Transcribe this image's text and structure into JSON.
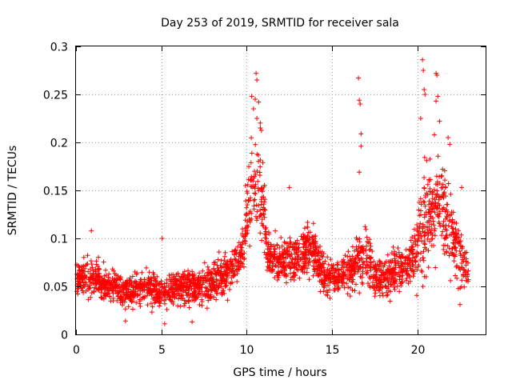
{
  "chart_data": {
    "type": "scatter",
    "title": "Day 253 of 2019, SRMTID for receiver sala",
    "xlabel": "GPS time / hours",
    "ylabel": "SRMTID / TECUs",
    "xlim": [
      0,
      24
    ],
    "ylim": [
      0,
      0.3
    ],
    "xticks": [
      0,
      5,
      10,
      15,
      20
    ],
    "xtick_labels": [
      "0",
      "5",
      "10",
      "15",
      "20"
    ],
    "yticks": [
      0,
      0.05,
      0.1,
      0.15,
      0.2,
      0.25,
      0.3
    ],
    "ytick_labels": [
      "0",
      "0.05",
      "0.1",
      "0.15",
      "0.2",
      "0.25",
      "0.3"
    ],
    "grid": true,
    "marker": "+",
    "color": "#ff0000",
    "data_extent": [
      0,
      23
    ],
    "envelope": [
      {
        "x": 0.0,
        "mean": 0.06,
        "spread": 0.018
      },
      {
        "x": 1.0,
        "mean": 0.058,
        "spread": 0.018
      },
      {
        "x": 2.0,
        "mean": 0.05,
        "spread": 0.016
      },
      {
        "x": 3.0,
        "mean": 0.045,
        "spread": 0.014
      },
      {
        "x": 4.0,
        "mean": 0.048,
        "spread": 0.016
      },
      {
        "x": 5.0,
        "mean": 0.045,
        "spread": 0.016
      },
      {
        "x": 6.0,
        "mean": 0.05,
        "spread": 0.018
      },
      {
        "x": 7.0,
        "mean": 0.048,
        "spread": 0.016
      },
      {
        "x": 8.0,
        "mean": 0.055,
        "spread": 0.018
      },
      {
        "x": 9.0,
        "mean": 0.065,
        "spread": 0.02
      },
      {
        "x": 9.7,
        "mean": 0.085,
        "spread": 0.018
      },
      {
        "x": 10.3,
        "mean": 0.15,
        "spread": 0.06
      },
      {
        "x": 10.8,
        "mean": 0.16,
        "spread": 0.06
      },
      {
        "x": 11.2,
        "mean": 0.085,
        "spread": 0.025
      },
      {
        "x": 12.0,
        "mean": 0.075,
        "spread": 0.02
      },
      {
        "x": 13.0,
        "mean": 0.08,
        "spread": 0.02
      },
      {
        "x": 13.8,
        "mean": 0.09,
        "spread": 0.025
      },
      {
        "x": 14.5,
        "mean": 0.06,
        "spread": 0.018
      },
      {
        "x": 15.5,
        "mean": 0.06,
        "spread": 0.016
      },
      {
        "x": 16.5,
        "mean": 0.075,
        "spread": 0.025
      },
      {
        "x": 17.0,
        "mean": 0.085,
        "spread": 0.03
      },
      {
        "x": 17.5,
        "mean": 0.055,
        "spread": 0.018
      },
      {
        "x": 18.5,
        "mean": 0.065,
        "spread": 0.02
      },
      {
        "x": 19.5,
        "mean": 0.07,
        "spread": 0.025
      },
      {
        "x": 20.3,
        "mean": 0.11,
        "spread": 0.05
      },
      {
        "x": 21.0,
        "mean": 0.13,
        "spread": 0.05
      },
      {
        "x": 21.8,
        "mean": 0.12,
        "spread": 0.045
      },
      {
        "x": 22.4,
        "mean": 0.08,
        "spread": 0.03
      },
      {
        "x": 23.0,
        "mean": 0.065,
        "spread": 0.02
      }
    ],
    "notable_points": [
      {
        "x": 10.55,
        "y": 0.272
      },
      {
        "x": 10.6,
        "y": 0.265
      },
      {
        "x": 10.3,
        "y": 0.248
      },
      {
        "x": 10.5,
        "y": 0.245
      },
      {
        "x": 10.7,
        "y": 0.242
      },
      {
        "x": 10.4,
        "y": 0.235
      },
      {
        "x": 10.6,
        "y": 0.225
      },
      {
        "x": 10.8,
        "y": 0.215
      },
      {
        "x": 12.5,
        "y": 0.153
      },
      {
        "x": 16.55,
        "y": 0.267
      },
      {
        "x": 16.6,
        "y": 0.244
      },
      {
        "x": 16.65,
        "y": 0.24
      },
      {
        "x": 16.7,
        "y": 0.209
      },
      {
        "x": 16.7,
        "y": 0.196
      },
      {
        "x": 16.6,
        "y": 0.169
      },
      {
        "x": 20.3,
        "y": 0.286
      },
      {
        "x": 20.35,
        "y": 0.275
      },
      {
        "x": 20.4,
        "y": 0.255
      },
      {
        "x": 20.45,
        "y": 0.25
      },
      {
        "x": 20.2,
        "y": 0.225
      },
      {
        "x": 21.1,
        "y": 0.272
      },
      {
        "x": 21.15,
        "y": 0.27
      },
      {
        "x": 21.2,
        "y": 0.248
      },
      {
        "x": 21.1,
        "y": 0.243
      },
      {
        "x": 21.3,
        "y": 0.222
      },
      {
        "x": 21.0,
        "y": 0.208
      },
      {
        "x": 21.8,
        "y": 0.205
      },
      {
        "x": 21.9,
        "y": 0.198
      },
      {
        "x": 22.6,
        "y": 0.153
      },
      {
        "x": 0.9,
        "y": 0.108
      },
      {
        "x": 5.05,
        "y": 0.1
      },
      {
        "x": 5.2,
        "y": 0.011
      },
      {
        "x": 2.9,
        "y": 0.014
      },
      {
        "x": 6.8,
        "y": 0.013
      },
      {
        "x": 22.5,
        "y": 0.031
      }
    ]
  }
}
